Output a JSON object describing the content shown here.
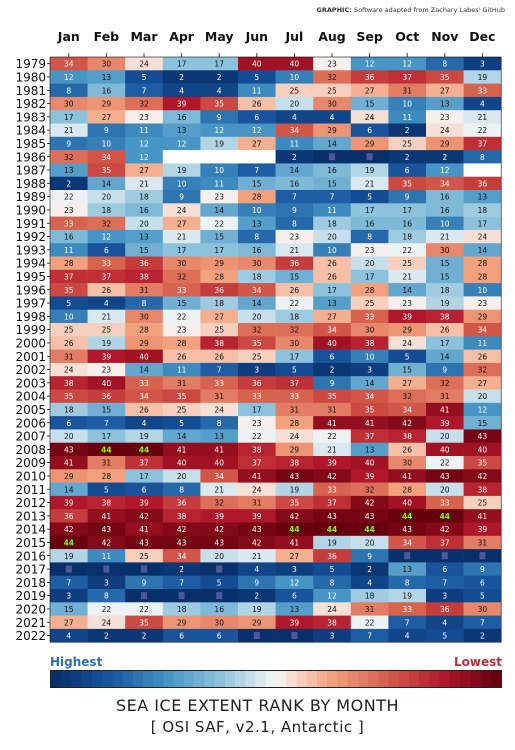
{
  "credit": {
    "label": "GRAPHIC:",
    "text": "Software adapted from Zachary Labes' GitHub"
  },
  "legend": {
    "high": "Highest",
    "low": "Lowest"
  },
  "title": "SEA ICE EXTENT RANK BY MONTH",
  "subtitle": "[ OSI SAF, v2.1, Antarctic ]",
  "chart_data": {
    "type": "heatmap",
    "months": [
      "Jan",
      "Feb",
      "Mar",
      "Apr",
      "May",
      "Jun",
      "Jul",
      "Aug",
      "Sep",
      "Oct",
      "Nov",
      "Dec"
    ],
    "years": [
      "1979",
      "1980",
      "1981",
      "1982",
      "1983",
      "1984",
      "1985",
      "1986",
      "1987",
      "1988",
      "1989",
      "1990",
      "1991",
      "1992",
      "1993",
      "1994",
      "1995",
      "1996",
      "1997",
      "1998",
      "1999",
      "2000",
      "2001",
      "2002",
      "2003",
      "2004",
      "2005",
      "2006",
      "2007",
      "2008",
      "2009",
      "2010",
      "2011",
      "2012",
      "2013",
      "2014",
      "2015",
      "2016",
      "2017",
      "2018",
      "2019",
      "2020",
      "2021",
      "2022"
    ],
    "max_rank": 44,
    "colormap": "RdBu_r (rank 1 = dark blue Highest, rank 44 = dark red Lowest)",
    "ranks": [
      [
        34,
        30,
        24,
        17,
        17,
        40,
        40,
        23,
        12,
        12,
        8,
        3
      ],
      [
        12,
        13,
        5,
        2,
        2,
        5,
        10,
        32,
        36,
        37,
        35,
        19
      ],
      [
        8,
        16,
        7,
        4,
        4,
        11,
        25,
        25,
        27,
        31,
        27,
        33
      ],
      [
        30,
        29,
        32,
        39,
        35,
        26,
        20,
        30,
        15,
        10,
        13,
        4
      ],
      [
        17,
        27,
        23,
        16,
        9,
        6,
        4,
        4,
        24,
        11,
        23,
        21
      ],
      [
        21,
        9,
        11,
        13,
        12,
        12,
        34,
        29,
        6,
        2,
        24,
        22
      ],
      [
        9,
        10,
        12,
        12,
        19,
        27,
        11,
        14,
        29,
        25,
        29,
        37
      ],
      [
        32,
        34,
        12,
        null,
        null,
        null,
        2,
        1,
        1,
        2,
        2,
        8
      ],
      [
        13,
        35,
        27,
        19,
        10,
        7,
        14,
        16,
        19,
        6,
        12,
        null
      ],
      [
        2,
        14,
        21,
        10,
        11,
        15,
        16,
        15,
        21,
        35,
        34,
        36
      ],
      [
        22,
        20,
        18,
        9,
        23,
        28,
        7,
        7,
        5,
        9,
        16,
        13
      ],
      [
        23,
        18,
        16,
        24,
        14,
        10,
        9,
        11,
        17,
        17,
        16,
        18
      ],
      [
        33,
        32,
        20,
        27,
        22,
        13,
        8,
        18,
        16,
        16,
        10,
        17
      ],
      [
        16,
        12,
        13,
        21,
        15,
        8,
        23,
        20,
        8,
        18,
        21,
        24
      ],
      [
        11,
        6,
        15,
        17,
        17,
        16,
        21,
        10,
        23,
        22,
        30,
        14
      ],
      [
        28,
        33,
        36,
        30,
        29,
        30,
        36,
        26,
        20,
        25,
        15,
        28
      ],
      [
        37,
        37,
        38,
        32,
        28,
        18,
        15,
        26,
        17,
        21,
        15,
        28
      ],
      [
        35,
        26,
        31,
        33,
        36,
        34,
        26,
        17,
        28,
        14,
        18,
        10
      ],
      [
        5,
        4,
        8,
        15,
        18,
        14,
        22,
        13,
        25,
        23,
        19,
        23
      ],
      [
        10,
        21,
        30,
        22,
        27,
        20,
        18,
        27,
        33,
        39,
        38,
        29
      ],
      [
        25,
        25,
        28,
        23,
        25,
        32,
        32,
        34,
        30,
        29,
        26,
        34
      ],
      [
        26,
        19,
        29,
        28,
        38,
        35,
        30,
        40,
        38,
        24,
        17,
        11
      ],
      [
        31,
        39,
        40,
        26,
        26,
        25,
        17,
        6,
        10,
        5,
        14,
        26
      ],
      [
        24,
        23,
        14,
        11,
        7,
        3,
        5,
        2,
        3,
        15,
        9,
        32
      ],
      [
        38,
        40,
        33,
        31,
        33,
        36,
        37,
        9,
        14,
        27,
        32,
        27
      ],
      [
        35,
        36,
        34,
        35,
        31,
        33,
        33,
        35,
        34,
        32,
        31,
        20
      ],
      [
        18,
        15,
        26,
        25,
        24,
        17,
        31,
        31,
        35,
        34,
        41,
        12
      ],
      [
        6,
        7,
        4,
        5,
        8,
        23,
        28,
        41,
        41,
        42,
        39,
        15
      ],
      [
        20,
        17,
        19,
        14,
        13,
        22,
        24,
        22,
        37,
        38,
        20,
        43
      ],
      [
        43,
        44,
        44,
        41,
        41,
        38,
        29,
        21,
        13,
        26,
        40,
        40
      ],
      [
        41,
        31,
        37,
        40,
        40,
        37,
        38,
        39,
        40,
        30,
        22,
        35
      ],
      [
        29,
        28,
        17,
        20,
        34,
        41,
        43,
        42,
        39,
        41,
        43,
        42
      ],
      [
        14,
        5,
        6,
        8,
        21,
        24,
        19,
        33,
        32,
        28,
        20,
        38
      ],
      [
        39,
        38,
        39,
        36,
        32,
        31,
        35,
        37,
        42,
        40,
        33,
        25
      ],
      [
        36,
        41,
        42,
        38,
        39,
        39,
        42,
        43,
        43,
        44,
        44,
        41
      ],
      [
        42,
        43,
        41,
        42,
        42,
        43,
        44,
        44,
        44,
        43,
        42,
        39
      ],
      [
        44,
        42,
        43,
        43,
        43,
        42,
        41,
        19,
        20,
        34,
        37,
        31
      ],
      [
        19,
        11,
        25,
        34,
        20,
        21,
        27,
        36,
        9,
        1,
        1,
        1
      ],
      [
        1,
        1,
        1,
        2,
        1,
        4,
        3,
        5,
        2,
        13,
        6,
        9
      ],
      [
        7,
        3,
        9,
        7,
        5,
        9,
        12,
        8,
        4,
        8,
        7,
        6
      ],
      [
        3,
        8,
        1,
        1,
        1,
        2,
        6,
        12,
        18,
        19,
        3,
        5
      ],
      [
        15,
        22,
        22,
        18,
        16,
        19,
        13,
        24,
        31,
        33,
        36,
        30
      ],
      [
        27,
        24,
        35,
        29,
        30,
        29,
        39,
        38,
        22,
        7,
        4,
        7
      ],
      [
        4,
        2,
        2,
        6,
        6,
        1,
        1,
        3,
        7,
        4,
        5,
        2
      ]
    ]
  }
}
